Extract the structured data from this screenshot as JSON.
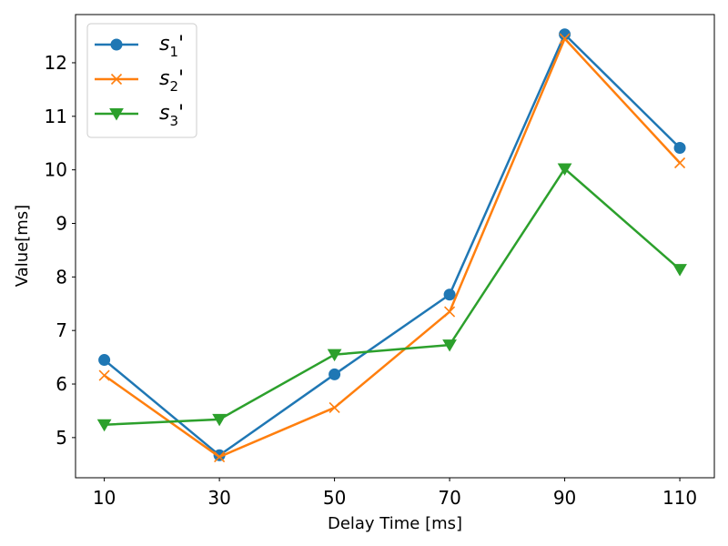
{
  "chart_data": {
    "type": "line",
    "x": [
      10,
      30,
      50,
      70,
      90,
      110
    ],
    "xticks": [
      "10",
      "30",
      "50",
      "70",
      "90",
      "110"
    ],
    "yticks": [
      "5",
      "6",
      "7",
      "8",
      "9",
      "10",
      "11",
      "12"
    ],
    "xlabel": "Delay Time [ms]",
    "ylabel": "Value[ms]",
    "xlim": [
      5,
      116
    ],
    "ylim": [
      4.25,
      12.9
    ],
    "grid": false,
    "legend_position": "top-left",
    "series": [
      {
        "name": "s",
        "sub": "1",
        "suffix": "'",
        "color": "#1f77b4",
        "marker": "circle",
        "values": [
          6.45,
          4.67,
          6.18,
          7.67,
          12.53,
          10.41
        ]
      },
      {
        "name": "s",
        "sub": "2",
        "suffix": "'",
        "color": "#ff7f0e",
        "marker": "x",
        "values": [
          6.16,
          4.64,
          5.56,
          7.35,
          12.45,
          10.13
        ]
      },
      {
        "name": "s",
        "sub": "3",
        "suffix": "'",
        "color": "#2ca02c",
        "marker": "triangle-down",
        "values": [
          5.24,
          5.34,
          6.55,
          6.73,
          10.02,
          8.14
        ]
      }
    ]
  }
}
